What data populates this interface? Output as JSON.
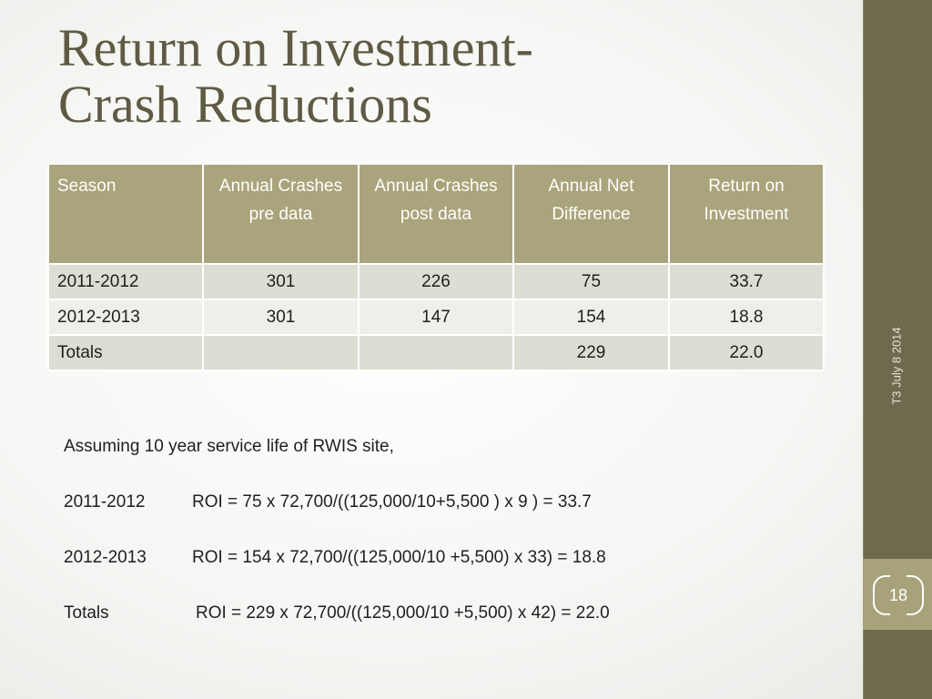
{
  "slide": {
    "title_line1": "Return on Investment-",
    "title_line2": "Crash Reductions",
    "footer": "T3 July 8 2014",
    "page_number": "18"
  },
  "table": {
    "headers": [
      "Season",
      "Annual Crashes  pre data",
      "Annual Crashes post data",
      "Annual Net Difference",
      "Return on Investment"
    ],
    "rows": [
      [
        "2011-2012",
        "301",
        "226",
        "75",
        "33.7"
      ],
      [
        "2012-2013",
        "301",
        "147",
        "154",
        "18.8"
      ],
      [
        "Totals",
        "",
        "",
        "229",
        "22.0"
      ]
    ]
  },
  "notes": {
    "assumption": "Assuming 10 year service life of RWIS site,",
    "formulas": [
      {
        "label": "2011-2012",
        "text": "ROI = 75 x 72,700/((125,000/10+5,500 ) x 9 ) = 33.7"
      },
      {
        "label": "2012-2013",
        "text": "ROI = 154 x 72,700/((125,000/10 +5,500) x 33) = 18.8"
      },
      {
        "label": "Totals",
        "text": "ROI = 229 x 72,700/((125,000/10 +5,500) x 42) = 22.0"
      }
    ]
  },
  "colors": {
    "title": "#5f5a43",
    "sidebar": "#6e6a4e",
    "header_fill": "#a9a47b",
    "row_odd": "#deddd3",
    "row_even": "#efefe9",
    "page_box": "#a7a27a"
  }
}
